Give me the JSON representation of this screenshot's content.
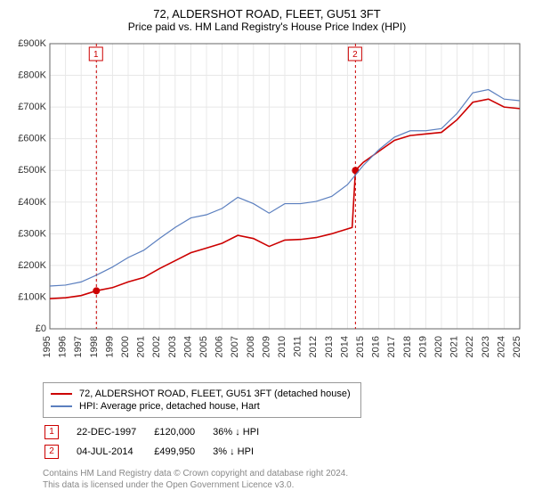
{
  "title": "72, ALDERSHOT ROAD, FLEET, GU51 3FT",
  "subtitle": "Price paid vs. HM Land Registry's House Price Index (HPI)",
  "chart": {
    "type": "line",
    "background_color": "#ffffff",
    "grid_color": "#e8e8e8",
    "axis_color": "#666666",
    "label_fontsize": 11,
    "x": {
      "min": 1995,
      "max": 2025,
      "ticks": [
        1995,
        1996,
        1997,
        1998,
        1999,
        2000,
        2001,
        2002,
        2003,
        2004,
        2005,
        2006,
        2007,
        2008,
        2009,
        2010,
        2011,
        2012,
        2013,
        2014,
        2015,
        2016,
        2017,
        2018,
        2019,
        2020,
        2021,
        2022,
        2023,
        2024,
        2025
      ]
    },
    "y": {
      "min": 0,
      "max": 900000,
      "ticks": [
        0,
        100000,
        200000,
        300000,
        400000,
        500000,
        600000,
        700000,
        800000,
        900000
      ],
      "tick_labels": [
        "£0",
        "£100K",
        "£200K",
        "£300K",
        "£400K",
        "£500K",
        "£600K",
        "£700K",
        "£800K",
        "£900K"
      ]
    },
    "annotations": [
      {
        "num": "1",
        "x": 1997.97,
        "dash": true,
        "color": "#cc0000"
      },
      {
        "num": "2",
        "x": 2014.51,
        "dash": true,
        "color": "#cc0000"
      }
    ],
    "series": [
      {
        "name": "price_paid",
        "label": "72, ALDERSHOT ROAD, FLEET, GU51 3FT (detached house)",
        "color": "#cc0000",
        "line_width": 1.6,
        "points": [
          [
            1995,
            95000
          ],
          [
            1996,
            98000
          ],
          [
            1997,
            105000
          ],
          [
            1997.97,
            120000
          ],
          [
            1999,
            130000
          ],
          [
            2000,
            148000
          ],
          [
            2001,
            162000
          ],
          [
            2002,
            190000
          ],
          [
            2003,
            215000
          ],
          [
            2004,
            240000
          ],
          [
            2005,
            255000
          ],
          [
            2006,
            270000
          ],
          [
            2007,
            295000
          ],
          [
            2008,
            285000
          ],
          [
            2009,
            260000
          ],
          [
            2010,
            280000
          ],
          [
            2011,
            282000
          ],
          [
            2012,
            288000
          ],
          [
            2013,
            300000
          ],
          [
            2014.3,
            320000
          ],
          [
            2014.51,
            499950
          ],
          [
            2015,
            525000
          ],
          [
            2016,
            560000
          ],
          [
            2017,
            595000
          ],
          [
            2018,
            610000
          ],
          [
            2019,
            615000
          ],
          [
            2020,
            620000
          ],
          [
            2021,
            660000
          ],
          [
            2022,
            715000
          ],
          [
            2023,
            725000
          ],
          [
            2024,
            700000
          ],
          [
            2025,
            695000
          ]
        ],
        "markers": [
          {
            "x": 1997.97,
            "y": 120000,
            "color": "#cc0000",
            "size": 4
          },
          {
            "x": 2014.51,
            "y": 499950,
            "color": "#cc0000",
            "size": 4
          }
        ]
      },
      {
        "name": "hpi",
        "label": "HPI: Average price, detached house, Hart",
        "color": "#5b7fbf",
        "line_width": 1.2,
        "points": [
          [
            1995,
            135000
          ],
          [
            1996,
            138000
          ],
          [
            1997,
            148000
          ],
          [
            1998,
            170000
          ],
          [
            1999,
            195000
          ],
          [
            2000,
            225000
          ],
          [
            2001,
            248000
          ],
          [
            2002,
            285000
          ],
          [
            2003,
            320000
          ],
          [
            2004,
            350000
          ],
          [
            2005,
            360000
          ],
          [
            2006,
            380000
          ],
          [
            2007,
            415000
          ],
          [
            2008,
            395000
          ],
          [
            2009,
            365000
          ],
          [
            2010,
            395000
          ],
          [
            2011,
            395000
          ],
          [
            2012,
            402000
          ],
          [
            2013,
            418000
          ],
          [
            2014,
            455000
          ],
          [
            2015,
            515000
          ],
          [
            2016,
            565000
          ],
          [
            2017,
            605000
          ],
          [
            2018,
            625000
          ],
          [
            2019,
            625000
          ],
          [
            2020,
            632000
          ],
          [
            2021,
            680000
          ],
          [
            2022,
            745000
          ],
          [
            2023,
            755000
          ],
          [
            2024,
            725000
          ],
          [
            2025,
            720000
          ]
        ]
      }
    ]
  },
  "legend": {
    "rows": [
      {
        "color": "#cc0000",
        "label": "72, ALDERSHOT ROAD, FLEET, GU51 3FT (detached house)"
      },
      {
        "color": "#5b7fbf",
        "label": "HPI: Average price, detached house, Hart"
      }
    ]
  },
  "transactions": [
    {
      "num": "1",
      "date": "22-DEC-1997",
      "price": "£120,000",
      "diff": "36% ↓ HPI"
    },
    {
      "num": "2",
      "date": "04-JUL-2014",
      "price": "£499,950",
      "diff": "3% ↓ HPI"
    }
  ],
  "footer": {
    "line1": "Contains HM Land Registry data © Crown copyright and database right 2024.",
    "line2": "This data is licensed under the Open Government Licence v3.0."
  }
}
